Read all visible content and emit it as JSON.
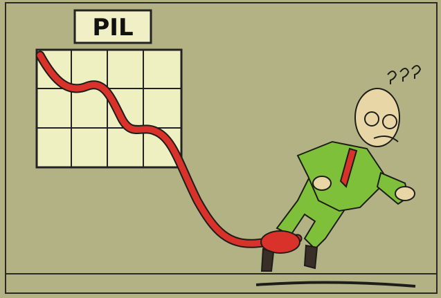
{
  "sign": {
    "text": "PIL"
  }
}
